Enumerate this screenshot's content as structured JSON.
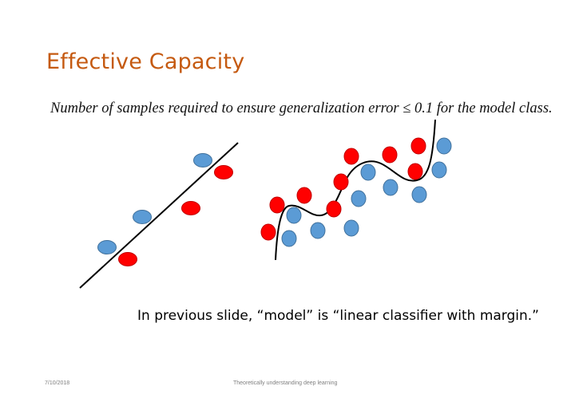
{
  "slide": {
    "title": "Effective Capacity",
    "subtitle": "Number of samples required to ensure generalization error  ≤ 0.1 for the model class.",
    "caption": "In previous slide, “model” is  “linear classifier with margin.”",
    "footer_date": "7/10/2018",
    "footer_text": "Theoretically understanding deep learning"
  },
  "colors": {
    "title": "#c55a11",
    "blue_point": "#5b9bd5",
    "red_point": "#ff0000"
  }
}
